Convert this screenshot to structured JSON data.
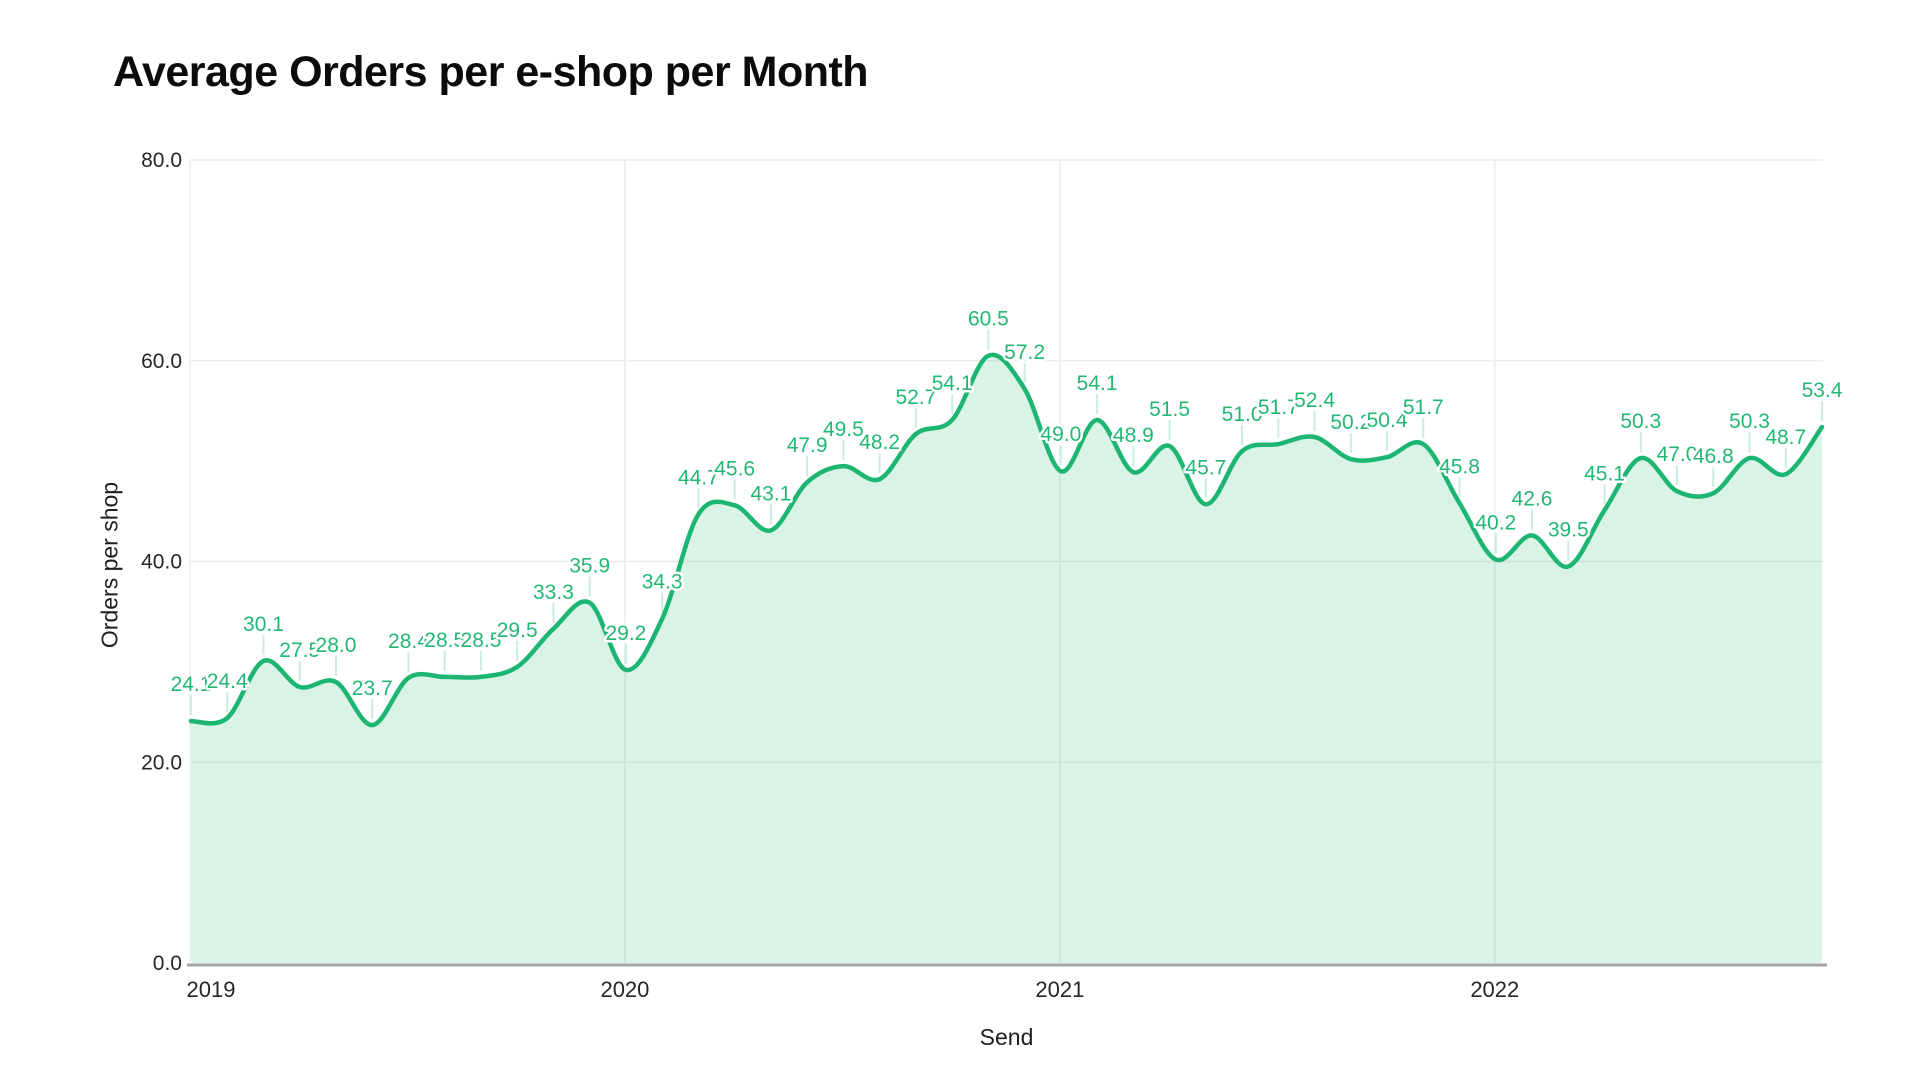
{
  "header": {
    "title": "Average Orders per e-shop per Month"
  },
  "chart_data": {
    "type": "area",
    "title": "Average Orders per e-shop per Month",
    "xlabel": "Send",
    "ylabel": "Orders per shop",
    "ylim": [
      0,
      80
    ],
    "grid": true,
    "legend": false,
    "y_ticks": {
      "values": [
        0,
        20,
        40,
        60,
        80
      ],
      "labels": [
        "0.0",
        "20.0",
        "40.0",
        "60.0",
        "80.0"
      ]
    },
    "x_ticks": {
      "labels": [
        "2019",
        "2020",
        "2021",
        "2022"
      ]
    },
    "categories": [
      "2019-01",
      "2019-02",
      "2019-03",
      "2019-04",
      "2019-05",
      "2019-06",
      "2019-07",
      "2019-08",
      "2019-09",
      "2019-10",
      "2019-11",
      "2019-12",
      "2020-01",
      "2020-02",
      "2020-03",
      "2020-04",
      "2020-05",
      "2020-06",
      "2020-07",
      "2020-08",
      "2020-09",
      "2020-10",
      "2020-11",
      "2020-12",
      "2021-01",
      "2021-02",
      "2021-03",
      "2021-04",
      "2021-05",
      "2021-06",
      "2021-07",
      "2021-08",
      "2021-09",
      "2021-10",
      "2021-11",
      "2021-12",
      "2022-01",
      "2022-02",
      "2022-03",
      "2022-04",
      "2022-05",
      "2022-06",
      "2022-07",
      "2022-08",
      "2022-09",
      "2022-10"
    ],
    "series": [
      {
        "name": "Orders per shop",
        "values": [
          24.1,
          24.4,
          30.1,
          27.5,
          28.0,
          23.7,
          28.4,
          28.5,
          28.5,
          29.5,
          33.3,
          35.9,
          29.2,
          34.3,
          44.7,
          45.6,
          43.1,
          47.9,
          49.5,
          48.2,
          52.7,
          54.1,
          60.5,
          57.2,
          49.0,
          54.1,
          48.9,
          51.5,
          45.7,
          51.0,
          51.7,
          52.4,
          50.2,
          50.4,
          51.7,
          45.8,
          40.2,
          42.6,
          39.5,
          45.1,
          50.3,
          47.0,
          46.8,
          50.3,
          48.7,
          53.4
        ]
      }
    ],
    "colors": {
      "line": "#1db572",
      "fill": "rgba(31,181,115,0.17)",
      "label": "#22b873",
      "connector": "#cdedDC",
      "grid": "#ececec",
      "axis": "#a3a3a3",
      "tick_text": "#262626",
      "title_text": "#0b0b0b"
    }
  }
}
